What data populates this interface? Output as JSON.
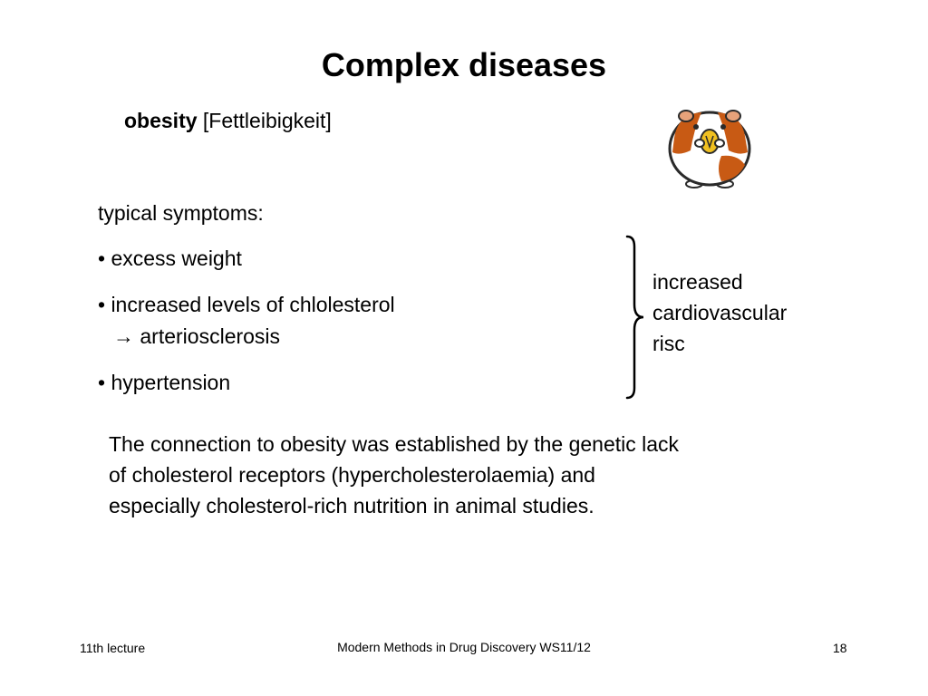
{
  "slide": {
    "title": "Complex diseases",
    "subtitle": {
      "term": "obesity",
      "translation": "[Fettleibigkeit]"
    },
    "image": {
      "icon": "hamster-icon",
      "colors": {
        "fur_orange": "#c85a14",
        "fur_white": "#ffffff",
        "outline": "#2a2a2a",
        "seed": "#f0c020"
      }
    },
    "symptoms": {
      "heading": "typical symptoms:",
      "items": [
        "• excess weight",
        "• increased levels of chlolesterol",
        "→ arteriosclerosis",
        "• hypertension"
      ]
    },
    "brace_label": {
      "lines": [
        "increased",
        "cardiovascular",
        "risc"
      ]
    },
    "paragraph": {
      "lines": [
        "The connection to obesity was established by the genetic lack",
        "of cholesterol receptors (hypercholesterolaemia) and",
        "especially cholesterol-rich nutrition in animal studies."
      ]
    }
  },
  "footer": {
    "left": "11th lecture",
    "center": "Modern Methods in Drug Discovery WS11/12",
    "right": "18"
  }
}
